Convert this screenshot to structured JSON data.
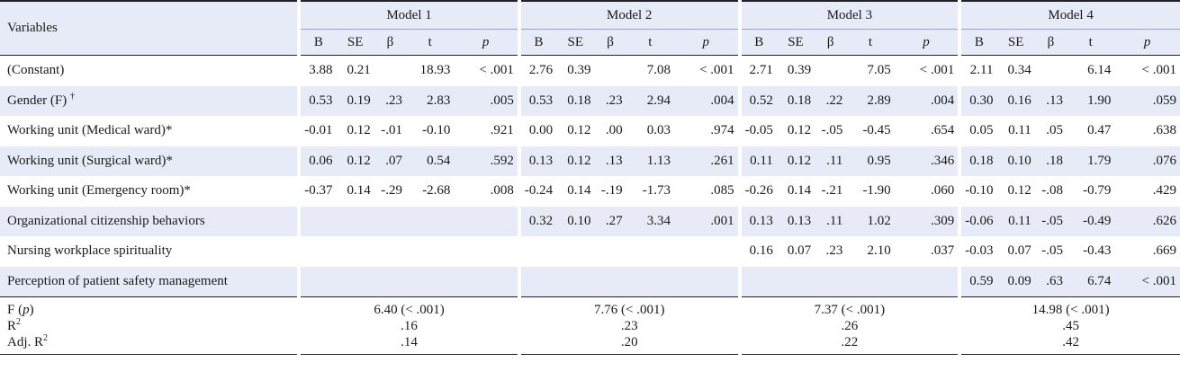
{
  "header": {
    "variables_label": "Variables",
    "models": [
      "Model 1",
      "Model 2",
      "Model 3",
      "Model 4"
    ],
    "stats": [
      "B",
      "SE",
      "β",
      "t",
      "p"
    ]
  },
  "rows": [
    {
      "label": "(Constant)",
      "sup": "",
      "models": [
        [
          "3.88",
          "0.21",
          "",
          "18.93",
          "< .001"
        ],
        [
          "2.76",
          "0.39",
          "",
          "7.08",
          "< .001"
        ],
        [
          "2.71",
          "0.39",
          "",
          "7.05",
          "< .001"
        ],
        [
          "2.11",
          "0.34",
          "",
          "6.14",
          "< .001"
        ]
      ]
    },
    {
      "label": "Gender (F)",
      "sup": "†",
      "models": [
        [
          "0.53",
          "0.19",
          ".23",
          "2.83",
          ".005"
        ],
        [
          "0.53",
          "0.18",
          ".23",
          "2.94",
          ".004"
        ],
        [
          "0.52",
          "0.18",
          ".22",
          "2.89",
          ".004"
        ],
        [
          "0.30",
          "0.16",
          ".13",
          "1.90",
          ".059"
        ]
      ]
    },
    {
      "label": "Working unit (Medical ward)*",
      "sup": "",
      "models": [
        [
          "-0.01",
          "0.12",
          "-.01",
          "-0.10",
          ".921"
        ],
        [
          "0.00",
          "0.12",
          ".00",
          "0.03",
          ".974"
        ],
        [
          "-0.05",
          "0.12",
          "-.05",
          "-0.45",
          ".654"
        ],
        [
          "0.05",
          "0.11",
          ".05",
          "0.47",
          ".638"
        ]
      ]
    },
    {
      "label": "Working unit (Surgical ward)*",
      "sup": "",
      "models": [
        [
          "0.06",
          "0.12",
          ".07",
          "0.54",
          ".592"
        ],
        [
          "0.13",
          "0.12",
          ".13",
          "1.13",
          ".261"
        ],
        [
          "0.11",
          "0.12",
          ".11",
          "0.95",
          ".346"
        ],
        [
          "0.18",
          "0.10",
          ".18",
          "1.79",
          ".076"
        ]
      ]
    },
    {
      "label": "Working unit (Emergency room)*",
      "sup": "",
      "models": [
        [
          "-0.37",
          "0.14",
          "-.29",
          "-2.68",
          ".008"
        ],
        [
          "-0.24",
          "0.14",
          "-.19",
          "-1.73",
          ".085"
        ],
        [
          "-0.26",
          "0.14",
          "-.21",
          "-1.90",
          ".060"
        ],
        [
          "-0.10",
          "0.12",
          "-.08",
          "-0.79",
          ".429"
        ]
      ]
    },
    {
      "label": "Organizational citizenship behaviors",
      "sup": "",
      "models": [
        [
          "",
          "",
          "",
          "",
          ""
        ],
        [
          "0.32",
          "0.10",
          ".27",
          "3.34",
          ".001"
        ],
        [
          "0.13",
          "0.13",
          ".11",
          "1.02",
          ".309"
        ],
        [
          "-0.06",
          "0.11",
          "-.05",
          "-0.49",
          ".626"
        ]
      ]
    },
    {
      "label": "Nursing workplace spirituality",
      "sup": "",
      "models": [
        [
          "",
          "",
          "",
          "",
          ""
        ],
        [
          "",
          "",
          "",
          "",
          ""
        ],
        [
          "0.16",
          "0.07",
          ".23",
          "2.10",
          ".037"
        ],
        [
          "-0.03",
          "0.07",
          "-.05",
          "-0.43",
          ".669"
        ]
      ]
    },
    {
      "label": "Perception of patient safety management",
      "sup": "",
      "models": [
        [
          "",
          "",
          "",
          "",
          ""
        ],
        [
          "",
          "",
          "",
          "",
          ""
        ],
        [
          "",
          "",
          "",
          "",
          ""
        ],
        [
          "0.59",
          "0.09",
          ".63",
          "6.74",
          "< .001"
        ]
      ]
    }
  ],
  "fit": [
    {
      "label_main": "F (",
      "label_italic": "p",
      "label_end": ")",
      "label_sup": "",
      "values": [
        "6.40 (< .001)",
        "7.76 (< .001)",
        "7.37 (< .001)",
        "14.98 (< .001)"
      ]
    },
    {
      "label_main": "R",
      "label_italic": "",
      "label_end": "",
      "label_sup": "2",
      "values": [
        ".16",
        ".23",
        ".26",
        ".45"
      ]
    },
    {
      "label_main": "Adj. R",
      "label_italic": "",
      "label_end": "",
      "label_sup": "2",
      "values": [
        ".14",
        ".20",
        ".22",
        ".42"
      ]
    }
  ]
}
